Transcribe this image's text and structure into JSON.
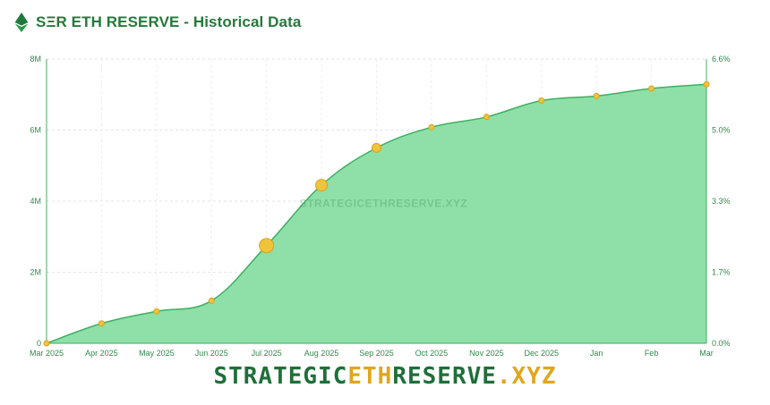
{
  "header": {
    "title": "SΞR ETH RESERVE - Historical Data",
    "icon": "ethereum-icon"
  },
  "watermark": "STRATEGICETHRESERVE.XYZ",
  "brand": {
    "part1": "STRATEGIC",
    "part2": "ETH",
    "part3": "RESERVE",
    "part4": ".XYZ"
  },
  "colors": {
    "area_fill": "#8ee0a8",
    "line": "#3fae62",
    "dot": "#f0c43a",
    "dot_stroke": "#d9a21f",
    "title": "#237a3c",
    "brand_green": "#1f6f3a",
    "brand_orange": "#e0a61d"
  },
  "chart_data": {
    "type": "area",
    "title": "SΞR ETH RESERVE - Historical Data",
    "categories": [
      "Mar 2025",
      "Apr 2025",
      "May 2025",
      "Jun 2025",
      "Jul 2025",
      "Aug 2025",
      "Sep 2025",
      "Oct 2025",
      "Nov 2025",
      "Dec 2025",
      "Jan",
      "Feb",
      "Mar"
    ],
    "series": [
      {
        "values": [
          0,
          560000,
          900000,
          1200000,
          2750000,
          4450000,
          5500000,
          6080000,
          6370000,
          6830000,
          6960000,
          7170000,
          7290000
        ],
        "marker_emphasis": [
          0,
          0,
          0,
          0,
          3,
          2,
          1,
          0,
          0,
          0,
          0,
          0,
          0
        ]
      }
    ],
    "y_left": {
      "ticks": [
        0,
        2000000,
        4000000,
        6000000,
        8000000
      ],
      "tick_labels": [
        "0",
        "2M",
        "4M",
        "6M",
        "8M"
      ],
      "range": [
        0,
        8000000
      ]
    },
    "y_right": {
      "tick_labels": [
        "0.0%",
        "1.7%",
        "3.3%",
        "5.0%",
        "6.6%"
      ]
    },
    "grid": true,
    "legend": "none"
  }
}
